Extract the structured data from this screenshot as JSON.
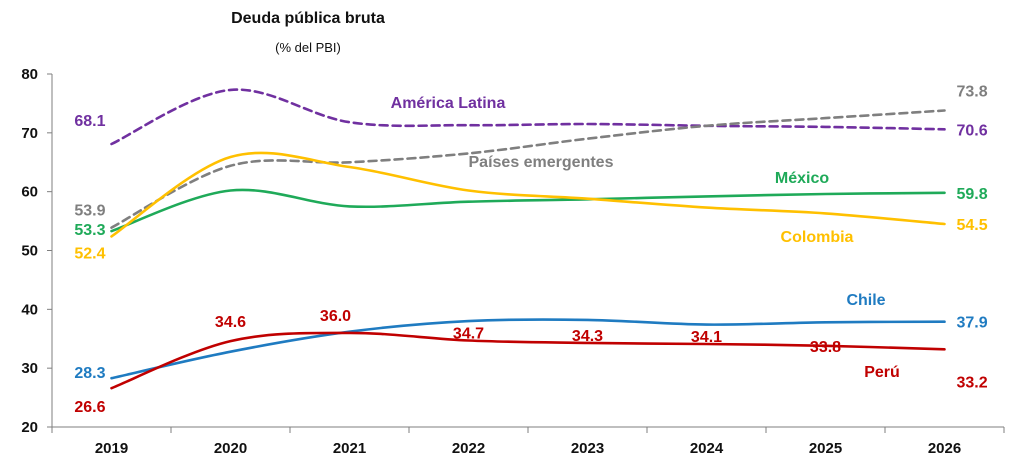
{
  "chart_data": {
    "type": "line",
    "title": "Deuda pública bruta",
    "subtitle": "(% del PBI)",
    "xlabel": "",
    "ylabel": "",
    "categories": [
      "2019",
      "2020",
      "2021",
      "2022",
      "2023",
      "2024",
      "2025",
      "2026"
    ],
    "ylim": [
      20,
      80
    ],
    "yticks": [
      20,
      30,
      40,
      50,
      60,
      70,
      80
    ],
    "grid": false,
    "legend": "none",
    "series": [
      {
        "name": "América Latina",
        "color": "#7030A0",
        "dashed": true,
        "values": [
          68.1,
          77.3,
          71.8,
          71.3,
          71.5,
          71.2,
          71.0,
          70.6
        ],
        "labels": {
          "0": "68.1",
          "7": "70.6"
        }
      },
      {
        "name": "Países emergentes",
        "color": "#7F7F7F",
        "dashed": true,
        "values": [
          53.9,
          64.4,
          65.0,
          66.5,
          69.0,
          71.2,
          72.5,
          73.8
        ],
        "labels": {
          "0": "53.9",
          "7": "73.8"
        }
      },
      {
        "name": "México",
        "color": "#1FAA59",
        "dashed": false,
        "values": [
          53.3,
          60.2,
          57.5,
          58.3,
          58.7,
          59.2,
          59.6,
          59.8
        ],
        "labels": {
          "0": "53.3",
          "7": "59.8"
        }
      },
      {
        "name": "Colombia",
        "color": "#FFC000",
        "dashed": false,
        "values": [
          52.4,
          65.9,
          64.2,
          60.2,
          58.8,
          57.3,
          56.3,
          54.5
        ],
        "labels": {
          "0": "52.4",
          "7": "54.5"
        }
      },
      {
        "name": "Chile",
        "color": "#1F7BC1",
        "dashed": false,
        "values": [
          28.3,
          32.8,
          36.2,
          38.0,
          38.2,
          37.4,
          37.8,
          37.9
        ],
        "labels": {
          "0": "28.3",
          "7": "37.9"
        }
      },
      {
        "name": "Perú",
        "color": "#C00000",
        "dashed": false,
        "values": [
          26.6,
          34.6,
          36.0,
          34.7,
          34.3,
          34.1,
          33.8,
          33.2
        ],
        "labels": {
          "0": "26.6",
          "1": "34.6",
          "2": "36.0",
          "3": "34.7",
          "4": "34.3",
          "5": "34.1",
          "6": "33.8",
          "7": "33.2"
        }
      }
    ]
  }
}
